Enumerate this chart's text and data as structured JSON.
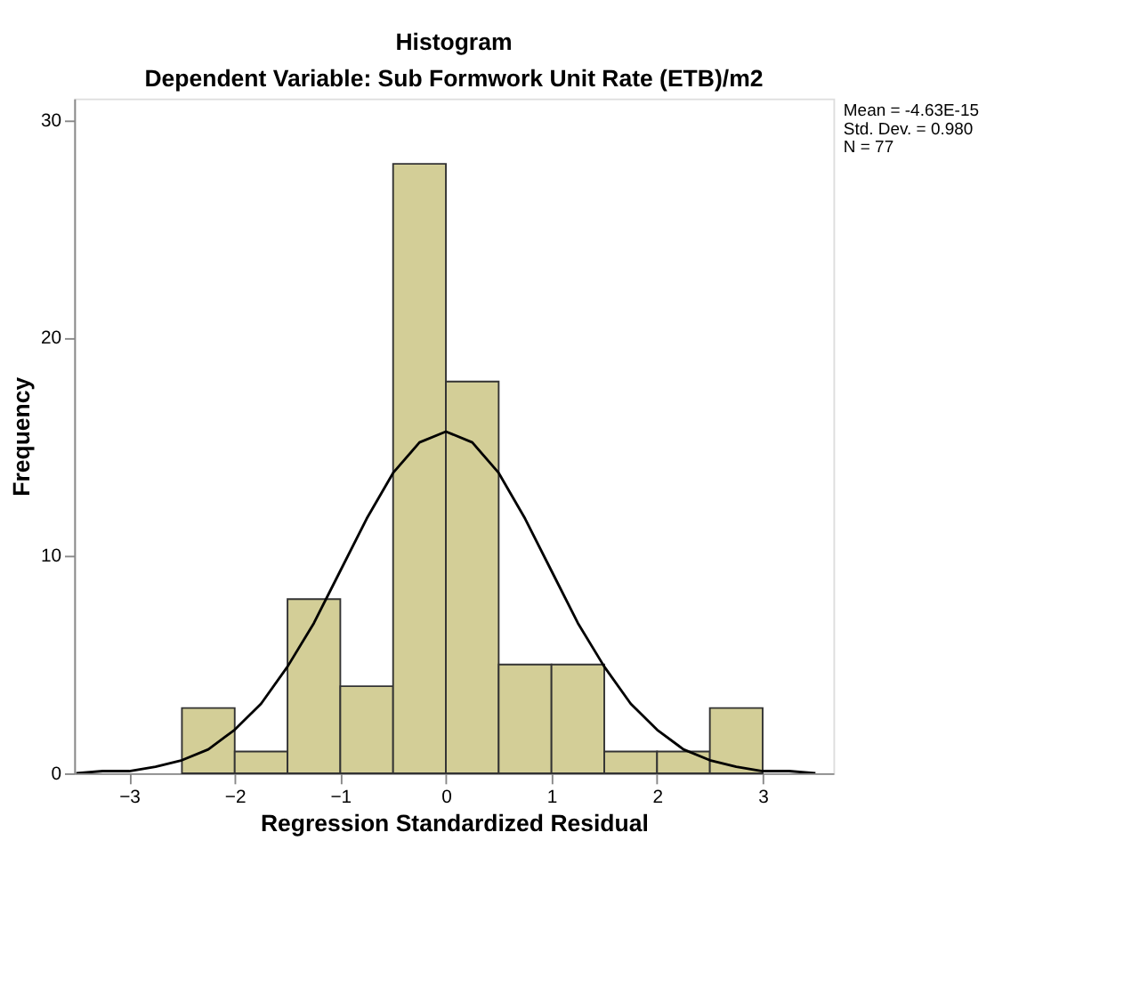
{
  "chart_data": {
    "type": "histogram",
    "title": "Histogram",
    "subtitle": "Dependent Variable: Sub Formwork Unit Rate (ETB)/m2",
    "xlabel": "Regression Standardized Residual",
    "ylabel": "Frequency",
    "bins": [
      -2.5,
      -2,
      -1.5,
      -1,
      -0.5,
      0,
      0.5,
      1,
      1.5,
      2,
      2.5,
      3
    ],
    "values": [
      3,
      1,
      8,
      4,
      28,
      18,
      5,
      5,
      1,
      1,
      3
    ],
    "color": "#d3ce97",
    "series": [
      {
        "type": "line",
        "color": "#000000",
        "x": [
          -3.5,
          -3.25,
          -3,
          -2.75,
          -2.5,
          -2.25,
          -2,
          -1.75,
          -1.5,
          -1.25,
          -1,
          -0.75,
          -0.5,
          -0.25,
          0,
          0.25,
          0.5,
          0.75,
          1,
          1.25,
          1.5,
          1.75,
          2,
          2.25,
          2.5,
          2.75,
          3,
          3.25,
          3.5
        ],
        "values": [
          0.0,
          0.1,
          0.1,
          0.3,
          0.6,
          1.1,
          2.0,
          3.2,
          4.9,
          6.9,
          9.3,
          11.7,
          13.8,
          15.2,
          15.7,
          15.2,
          13.8,
          11.7,
          9.3,
          6.9,
          4.9,
          3.2,
          2.0,
          1.1,
          0.6,
          0.3,
          0.1,
          0.1,
          0.0
        ]
      }
    ],
    "xlim": [
      -3.52,
      3.67
    ],
    "ylim": [
      0,
      31
    ],
    "xticks": [
      -3,
      -2,
      -1,
      0,
      1,
      2,
      3
    ],
    "yticks": [
      0,
      10,
      20,
      30
    ],
    "grid": false,
    "annotations": [
      "Mean = -4.63E-15",
      "Std. Dev. = 0.980",
      "N = 77"
    ]
  }
}
